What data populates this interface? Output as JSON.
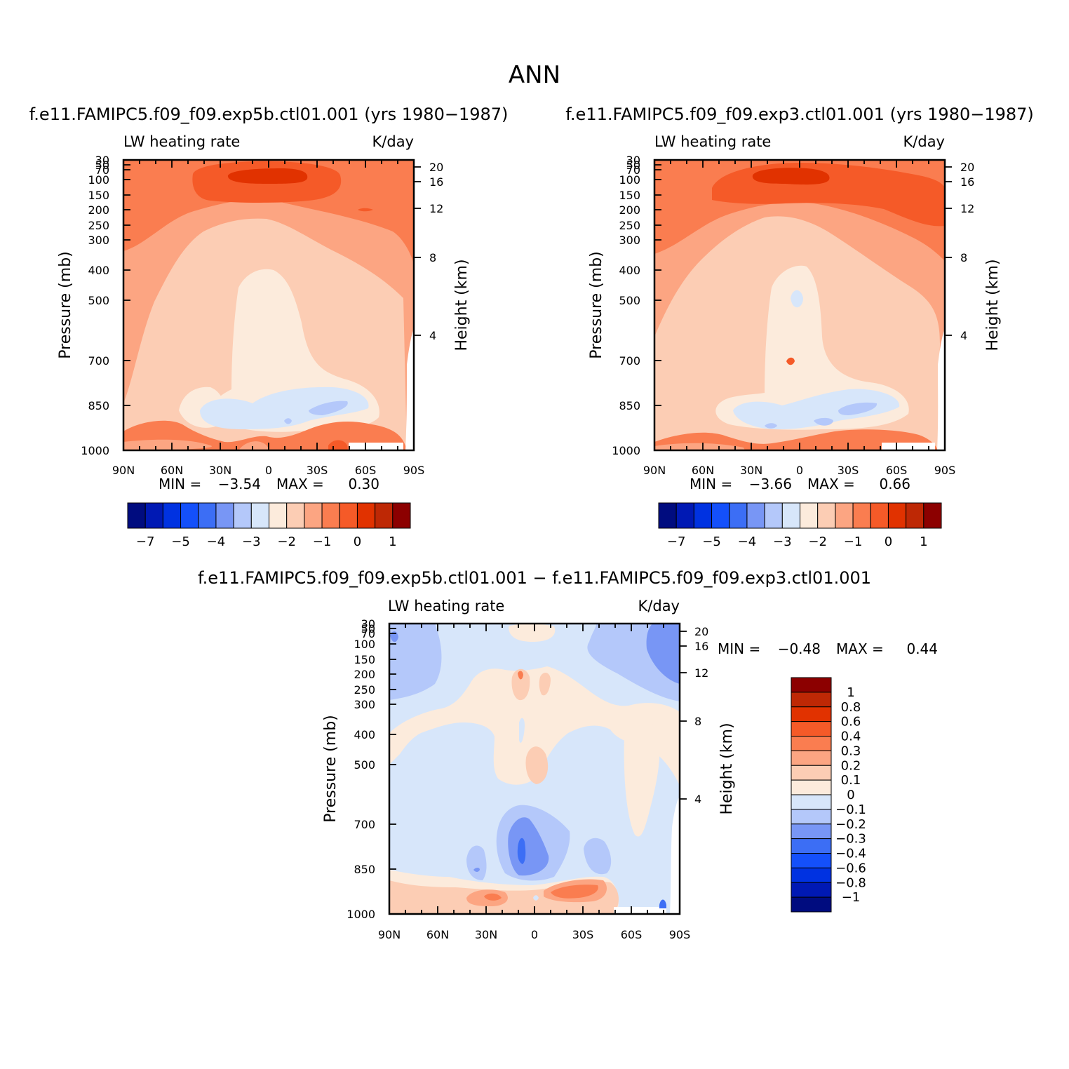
{
  "figure": {
    "title": "ANN",
    "diff_title": "f.e11.FAMIPC5.f09_f09.exp5b.ctl01.001  −  f.e11.FAMIPC5.f09_f09.exp3.ctl01.001"
  },
  "chart_data": [
    {
      "id": "panel-a",
      "type": "heatmap",
      "title": "f.e11.FAMIPC5.f09_f09.exp5b.ctl01.001 (yrs 1980−1987)",
      "variable": "LW heating rate",
      "units": "K/day",
      "ylabel": "Pressure (mb)",
      "y2label": "Height (km)",
      "x_ticks": [
        "90N",
        "60N",
        "30N",
        "0",
        "30S",
        "60S",
        "90S"
      ],
      "y_ticks": [
        "30",
        "50",
        "70",
        "100",
        "150",
        "200",
        "250",
        "300",
        "400",
        "500",
        "700",
        "850",
        "1000"
      ],
      "y2_ticks": [
        "20",
        "16",
        "12",
        "8",
        "4"
      ],
      "ylim": [
        1000,
        30
      ],
      "y_scale": "log",
      "min_label": "MIN =",
      "min": "−3.54",
      "max_label": "MAX =",
      "max": "0.30",
      "colorbar": {
        "orientation": "horizontal",
        "colors": [
          "#000c7f",
          "#0019b4",
          "#0032e1",
          "#1450fa",
          "#3c6ef5",
          "#7896f5",
          "#b4c8fa",
          "#d7e6fa",
          "#fcebdc",
          "#fccdb4",
          "#fca582",
          "#fa7d50",
          "#f55a28",
          "#e13200",
          "#be2805",
          "#8c0000"
        ],
        "labels": [
          "−7",
          "−5",
          "−4",
          "−3",
          "−2",
          "−1",
          "0",
          "1"
        ]
      }
    },
    {
      "id": "panel-b",
      "type": "heatmap",
      "title": "f.e11.FAMIPC5.f09_f09.exp3.ctl01.001 (yrs 1980−1987)",
      "variable": "LW heating rate",
      "units": "K/day",
      "ylabel": "Pressure (mb)",
      "y2label": "Height (km)",
      "x_ticks": [
        "90N",
        "60N",
        "30N",
        "0",
        "30S",
        "60S",
        "90S"
      ],
      "y_ticks": [
        "30",
        "50",
        "70",
        "100",
        "150",
        "200",
        "250",
        "300",
        "400",
        "500",
        "700",
        "850",
        "1000"
      ],
      "y2_ticks": [
        "20",
        "16",
        "12",
        "8",
        "4"
      ],
      "ylim": [
        1000,
        30
      ],
      "y_scale": "log",
      "min_label": "MIN =",
      "min": "−3.66",
      "max_label": "MAX =",
      "max": "0.66",
      "colorbar": {
        "orientation": "horizontal",
        "colors": [
          "#000c7f",
          "#0019b4",
          "#0032e1",
          "#1450fa",
          "#3c6ef5",
          "#7896f5",
          "#b4c8fa",
          "#d7e6fa",
          "#fcebdc",
          "#fccdb4",
          "#fca582",
          "#fa7d50",
          "#f55a28",
          "#e13200",
          "#be2805",
          "#8c0000"
        ],
        "labels": [
          "−7",
          "−5",
          "−4",
          "−3",
          "−2",
          "−1",
          "0",
          "1"
        ]
      }
    },
    {
      "id": "panel-diff",
      "type": "heatmap",
      "title": "",
      "variable": "LW heating rate",
      "units": "K/day",
      "ylabel": "Pressure (mb)",
      "y2label": "Height (km)",
      "x_ticks": [
        "90N",
        "60N",
        "30N",
        "0",
        "30S",
        "60S",
        "90S"
      ],
      "y_ticks": [
        "30",
        "50",
        "70",
        "100",
        "150",
        "200",
        "250",
        "300",
        "400",
        "500",
        "700",
        "850",
        "1000"
      ],
      "y2_ticks": [
        "20",
        "16",
        "12",
        "8",
        "4"
      ],
      "ylim": [
        1000,
        30
      ],
      "y_scale": "log",
      "min_label": "MIN =",
      "min": "−0.48",
      "max_label": "MAX =",
      "max": "0.44",
      "colorbar": {
        "orientation": "vertical",
        "colors": [
          "#8c0000",
          "#be2805",
          "#e13200",
          "#f55a28",
          "#fa7d50",
          "#fca582",
          "#fccdb4",
          "#fcebdc",
          "#d7e6fa",
          "#b4c8fa",
          "#7896f5",
          "#3c6ef5",
          "#1450fa",
          "#0032e1",
          "#0019b4",
          "#000c7f"
        ],
        "labels": [
          "1",
          "0.8",
          "0.6",
          "0.4",
          "0.3",
          "0.2",
          "0.1",
          "0",
          "−0.1",
          "−0.2",
          "−0.3",
          "−0.4",
          "−0.6",
          "−0.8",
          "−1"
        ]
      }
    }
  ]
}
